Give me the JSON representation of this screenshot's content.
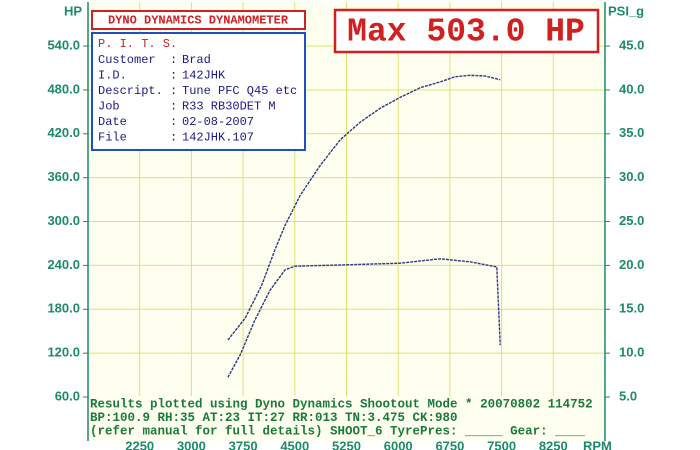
{
  "chart_data": {
    "type": "line",
    "header": "DYNO DYNAMICS DYNAMOMETER",
    "headline": "Max 503.0 HP",
    "ylabel": "HP",
    "y2label": "PSI_g",
    "xlabel": "RPM",
    "info": {
      "title": "P. I. T. S.",
      "rows": [
        {
          "label": "Customer",
          "sep": ":",
          "value": "Brad"
        },
        {
          "label": "I.D.",
          "sep": ":",
          "value": "142JHK"
        },
        {
          "label": "Descript.",
          "sep": ":",
          "value": "Tune PFC Q45 etc"
        },
        {
          "label": "Job",
          "sep": ":",
          "value": "R33 RB30DET M"
        },
        {
          "label": "Date",
          "sep": ":",
          "value": "02-08-2007"
        },
        {
          "label": "File",
          "sep": ":",
          "value": "142JHK.107"
        }
      ]
    },
    "footer": [
      "Results plotted using Dyno Dynamics Shootout Mode * 20070802 114752",
      "BP:100.9 RH:35 AT:23 IT:27 RR:013 TN:3.475 CK:980",
      "(refer manual for full details) SHOOT_6  TyrePres: _____  Gear: ____"
    ],
    "xlim": [
      1500,
      9000
    ],
    "xticks": [
      2250,
      3000,
      3750,
      4500,
      5250,
      6000,
      6750,
      7500,
      8250
    ],
    "ylim": [
      0,
      600
    ],
    "yticks": [
      {
        "value": 60,
        "label": "60.0"
      },
      {
        "value": 120,
        "label": "120.0"
      },
      {
        "value": 180,
        "label": "180.0"
      },
      {
        "value": 240,
        "label": "240.0"
      },
      {
        "value": 300,
        "label": "300.0"
      },
      {
        "value": 360,
        "label": "360.0"
      },
      {
        "value": 420,
        "label": "420.0"
      },
      {
        "value": 480,
        "label": "480.0"
      },
      {
        "value": 540,
        "label": "540.0"
      }
    ],
    "y2lim": [
      0,
      50
    ],
    "y2ticks": [
      {
        "value": 5,
        "label": "5.0"
      },
      {
        "value": 10,
        "label": "10.0"
      },
      {
        "value": 15,
        "label": "15.0"
      },
      {
        "value": 20,
        "label": "20.0"
      },
      {
        "value": 25,
        "label": "25.0"
      },
      {
        "value": 30,
        "label": "30.0"
      },
      {
        "value": 35,
        "label": "35.0"
      },
      {
        "value": 40,
        "label": "40.0"
      },
      {
        "value": 45,
        "label": "45.0"
      }
    ],
    "grid": true,
    "series": [
      {
        "color": "#2a3a80",
        "x": [
          3530,
          3780,
          4020,
          4210,
          4360,
          4580,
          4870,
          5160,
          5450,
          5740,
          6030,
          6320,
          6610,
          6820,
          7040,
          7260,
          7480
        ],
        "values": [
          138,
          168,
          213,
          261,
          295,
          336,
          377,
          412,
          436,
          455,
          470,
          483,
          491,
          498,
          500,
          499,
          494
        ]
      },
      {
        "color": "#2a3a80",
        "x": [
          3530,
          3710,
          3920,
          4140,
          4360,
          4500,
          5300,
          6030,
          6610,
          7040,
          7430,
          7480
        ],
        "values": [
          87,
          118,
          165,
          206,
          234,
          239,
          241,
          243,
          249,
          245,
          238,
          131
        ]
      }
    ]
  }
}
